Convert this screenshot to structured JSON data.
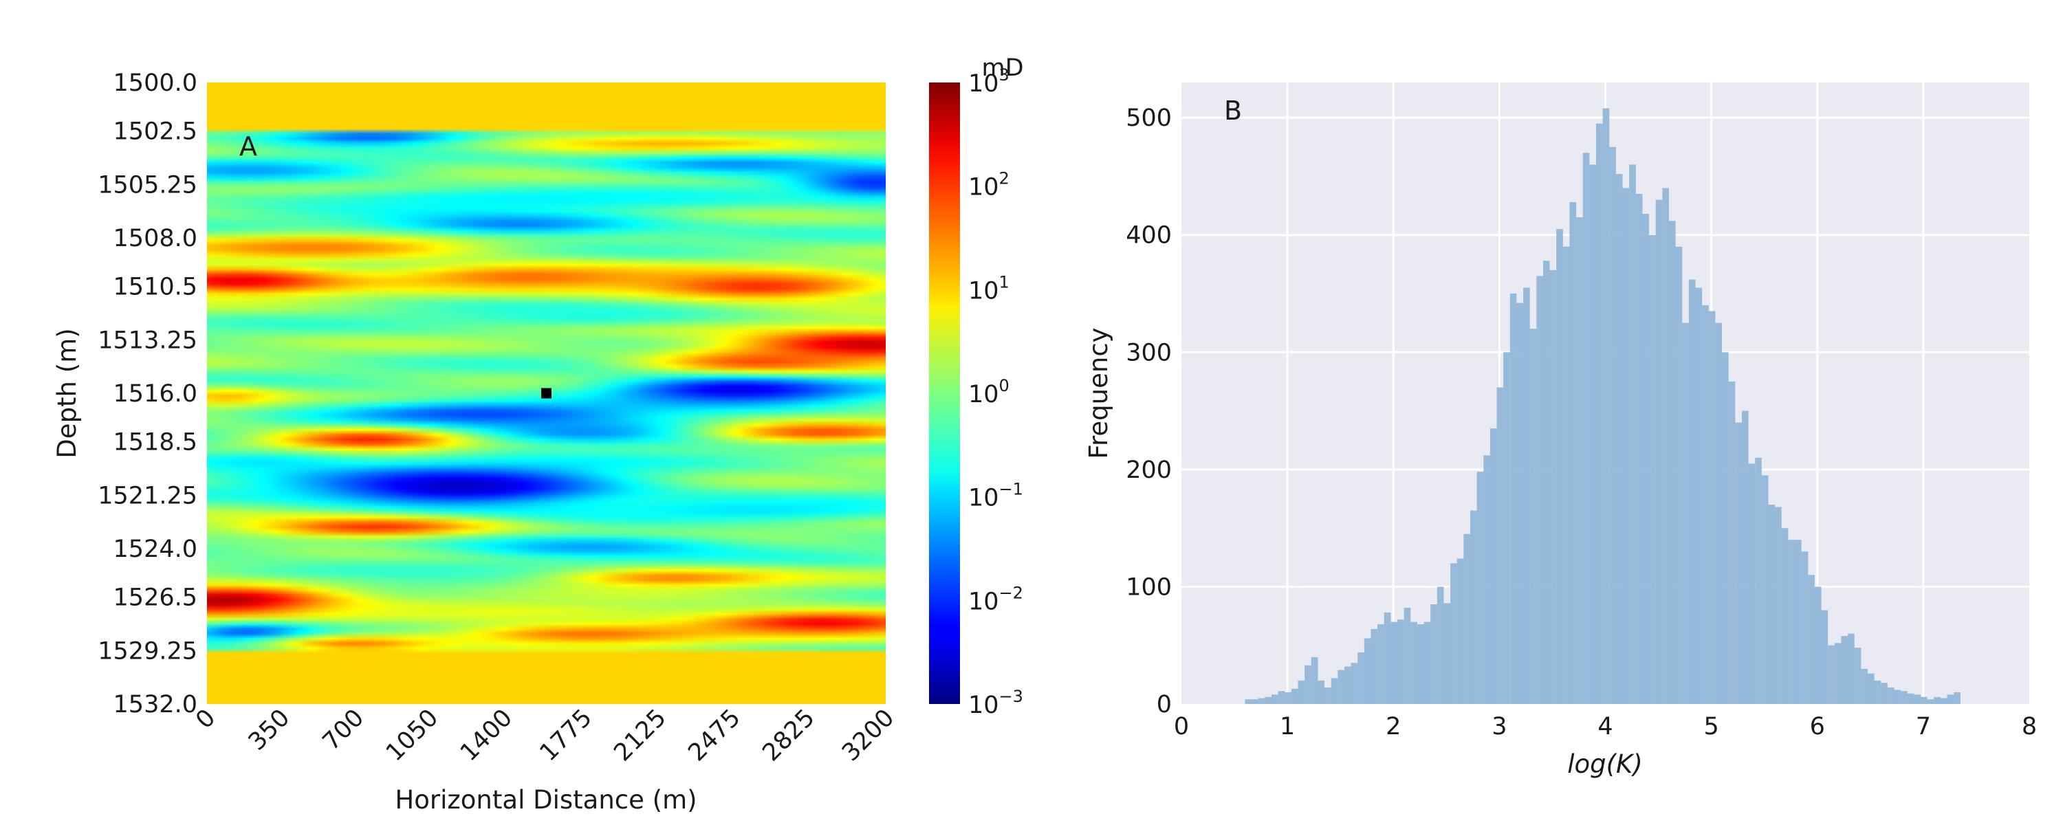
{
  "chart_data": [
    {
      "type": "heatmap",
      "panel_label": "A",
      "xlabel": "Horizontal Distance (m)",
      "ylabel": "Depth (m)",
      "xlim": [
        0,
        3200
      ],
      "ylim": [
        1500.0,
        1532.0
      ],
      "x_ticks": [
        "0",
        "350",
        "700",
        "1050",
        "1400",
        "1775",
        "2125",
        "2475",
        "2825",
        "3200"
      ],
      "x_tick_values": [
        0,
        350,
        700,
        1050,
        1400,
        1775,
        2125,
        2475,
        2825,
        3200
      ],
      "y_ticks": [
        "1500.0",
        "1502.5",
        "1505.25",
        "1508.0",
        "1510.5",
        "1513.25",
        "1516.0",
        "1518.5",
        "1521.25",
        "1524.0",
        "1526.5",
        "1529.25",
        "1532.0"
      ],
      "y_tick_values": [
        1500.0,
        1502.5,
        1505.25,
        1508.0,
        1510.5,
        1513.25,
        1516.0,
        1518.5,
        1521.25,
        1524.0,
        1526.5,
        1529.25,
        1532.0
      ],
      "colorbar": {
        "unit": "mD",
        "scale": "log",
        "range": [
          0.001,
          1000
        ],
        "colormap": "jet",
        "tick_exponents": [
          "3",
          "2",
          "1",
          "0",
          "−1",
          "−2",
          "−3"
        ]
      },
      "constant_layers": [
        {
          "y_range": [
            1500.0,
            1502.5
          ],
          "value_mD": 10
        },
        {
          "y_range": [
            1529.25,
            1532.0
          ],
          "value_mD": 10
        }
      ],
      "marker": {
        "x": 1600,
        "y": 1516.0,
        "color": "#000000"
      },
      "bands": [
        {
          "y": 1502.8,
          "x": 800,
          "log": -1.8,
          "sx": 400,
          "sy": 0.35
        },
        {
          "y": 1503.2,
          "x": 2200,
          "log": 1.3,
          "sx": 600,
          "sy": 0.4
        },
        {
          "y": 1504.2,
          "x": 2500,
          "log": -1.4,
          "sx": 500,
          "sy": 0.4
        },
        {
          "y": 1504.5,
          "x": 200,
          "log": -1.3,
          "sx": 400,
          "sy": 0.4
        },
        {
          "y": 1505.2,
          "x": 3150,
          "log": -2.0,
          "sx": 250,
          "sy": 0.6
        },
        {
          "y": 1506.0,
          "x": 1500,
          "log": -0.8,
          "sx": 900,
          "sy": 0.4
        },
        {
          "y": 1507.3,
          "x": 1450,
          "log": -1.5,
          "sx": 500,
          "sy": 0.45
        },
        {
          "y": 1508.5,
          "x": 500,
          "log": 1.5,
          "sx": 550,
          "sy": 0.45
        },
        {
          "y": 1510.2,
          "x": 150,
          "log": 2.4,
          "sx": 400,
          "sy": 0.5
        },
        {
          "y": 1510.0,
          "x": 1500,
          "log": 1.6,
          "sx": 500,
          "sy": 0.5
        },
        {
          "y": 1510.5,
          "x": 2600,
          "log": 2.0,
          "sx": 450,
          "sy": 0.55
        },
        {
          "y": 1512.0,
          "x": 1800,
          "log": -0.6,
          "sx": 500,
          "sy": 0.4
        },
        {
          "y": 1513.5,
          "x": 3100,
          "log": 2.6,
          "sx": 450,
          "sy": 0.6
        },
        {
          "y": 1514.5,
          "x": 2600,
          "log": 2.0,
          "sx": 350,
          "sy": 0.5
        },
        {
          "y": 1515.8,
          "x": 2500,
          "log": -2.4,
          "sx": 450,
          "sy": 0.55
        },
        {
          "y": 1516.2,
          "x": 100,
          "log": 1.2,
          "sx": 200,
          "sy": 0.35
        },
        {
          "y": 1517.1,
          "x": 1300,
          "log": -1.9,
          "sx": 550,
          "sy": 0.5
        },
        {
          "y": 1518.0,
          "x": 1800,
          "log": -1.5,
          "sx": 600,
          "sy": 0.5
        },
        {
          "y": 1518.4,
          "x": 750,
          "log": 2.1,
          "sx": 350,
          "sy": 0.45
        },
        {
          "y": 1518.0,
          "x": 2900,
          "log": 1.8,
          "sx": 400,
          "sy": 0.4
        },
        {
          "y": 1519.5,
          "x": 200,
          "log": -0.8,
          "sx": 400,
          "sy": 0.4
        },
        {
          "y": 1520.8,
          "x": 1200,
          "log": -2.6,
          "sx": 550,
          "sy": 0.8
        },
        {
          "y": 1522.0,
          "x": 2600,
          "log": -0.9,
          "sx": 600,
          "sy": 0.4
        },
        {
          "y": 1522.9,
          "x": 800,
          "log": 2.0,
          "sx": 450,
          "sy": 0.4
        },
        {
          "y": 1523.9,
          "x": 1800,
          "log": -1.3,
          "sx": 500,
          "sy": 0.45
        },
        {
          "y": 1525.2,
          "x": 700,
          "log": -0.5,
          "sx": 700,
          "sy": 0.4
        },
        {
          "y": 1525.5,
          "x": 2200,
          "log": 1.5,
          "sx": 400,
          "sy": 0.35
        },
        {
          "y": 1526.7,
          "x": 100,
          "log": 2.9,
          "sx": 400,
          "sy": 0.6
        },
        {
          "y": 1527.2,
          "x": 1400,
          "log": 0.6,
          "sx": 700,
          "sy": 0.4
        },
        {
          "y": 1527.8,
          "x": 2900,
          "log": 2.3,
          "sx": 450,
          "sy": 0.45
        },
        {
          "y": 1528.4,
          "x": 1800,
          "log": 1.6,
          "sx": 500,
          "sy": 0.4
        },
        {
          "y": 1528.3,
          "x": 200,
          "log": -1.8,
          "sx": 250,
          "sy": 0.35
        },
        {
          "y": 1528.9,
          "x": 700,
          "log": 1.5,
          "sx": 300,
          "sy": 0.3
        }
      ]
    },
    {
      "type": "bar",
      "subtype": "histogram",
      "panel_label": "B",
      "xlabel": "log(K)",
      "ylabel": "Frequency",
      "xlim": [
        0,
        8
      ],
      "ylim": [
        0,
        530
      ],
      "x_ticks": [
        "0",
        "1",
        "2",
        "3",
        "4",
        "5",
        "6",
        "7",
        "8"
      ],
      "y_ticks": [
        "0",
        "100",
        "200",
        "300",
        "400",
        "500"
      ],
      "y_tick_values": [
        0,
        100,
        200,
        300,
        400,
        500
      ],
      "grid": true,
      "color": "#8fb4d8",
      "bin_start": 0.6,
      "bin_width": 0.0625,
      "values": [
        4,
        4,
        5,
        6,
        8,
        11,
        10,
        13,
        20,
        33,
        40,
        20,
        14,
        22,
        29,
        32,
        35,
        44,
        56,
        64,
        68,
        78,
        70,
        72,
        82,
        70,
        68,
        70,
        85,
        100,
        86,
        120,
        124,
        145,
        165,
        198,
        212,
        235,
        270,
        300,
        350,
        342,
        355,
        320,
        365,
        378,
        370,
        405,
        390,
        428,
        415,
        470,
        460,
        495,
        508,
        475,
        452,
        440,
        460,
        435,
        418,
        400,
        430,
        440,
        412,
        390,
        325,
        362,
        355,
        340,
        335,
        325,
        300,
        275,
        240,
        250,
        205,
        210,
        195,
        170,
        168,
        150,
        140,
        140,
        130,
        110,
        100,
        80,
        50,
        52,
        58,
        60,
        48,
        30,
        26,
        20,
        18,
        14,
        12,
        11,
        9,
        8,
        6,
        4,
        6,
        5,
        8,
        10
      ]
    }
  ]
}
